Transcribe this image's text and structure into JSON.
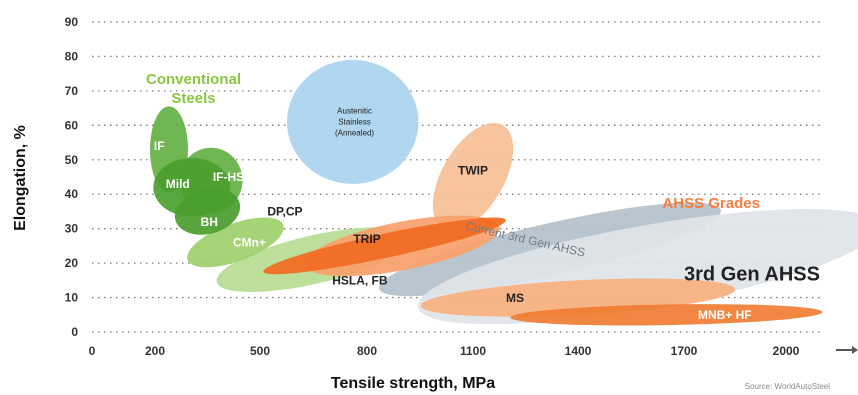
{
  "chart_data": {
    "type": "bubble-region",
    "xlabel": "Tensile strength, MPa",
    "ylabel": "Elongation, %",
    "xlim": [
      0,
      2100
    ],
    "ylim": [
      0,
      90
    ],
    "x_ticks": [
      "0",
      "200",
      "500",
      "800",
      "1100",
      "1400",
      "1700",
      "2000"
    ],
    "x_tick_values": [
      0,
      200,
      500,
      800,
      1100,
      1400,
      1700,
      2000
    ],
    "y_ticks": [
      "0",
      "10",
      "20",
      "30",
      "40",
      "50",
      "60",
      "70",
      "80",
      "90"
    ],
    "y_tick_values": [
      0,
      10,
      20,
      30,
      40,
      50,
      60,
      70,
      80,
      90
    ],
    "grid": true,
    "group_labels": [
      {
        "text": "Conventional Steels",
        "lines": [
          "Conventional",
          "Steels"
        ],
        "color": "#8cc63f",
        "at": [
          310,
          72
        ]
      },
      {
        "text": "AHSS Grades",
        "lines": [
          "AHSS Grades"
        ],
        "color": "#f47f40",
        "at": [
          1780,
          36
        ]
      },
      {
        "text": "3rd Gen AHSS",
        "lines": [
          "3rd Gen AHSS"
        ],
        "color": "#222222",
        "at": [
          1900,
          15
        ]
      }
    ],
    "regions": [
      {
        "name": "HSLA, FB",
        "color": "#b9dc93",
        "cx": 650,
        "cy": 21,
        "w": 560,
        "h": 14,
        "angle": -13,
        "label_at": [
          780,
          15
        ]
      },
      {
        "name": "CMn+",
        "color": "#9fcf6b",
        "cx": 430,
        "cy": 26,
        "w": 290,
        "h": 11,
        "angle": -20,
        "label_at": [
          470,
          26
        ]
      },
      {
        "name": "Austenitic Stainless (Annealed)",
        "lines": [
          "Austenitic",
          "Stainless",
          "(Annealed)"
        ],
        "color": "#a9d4ee",
        "cx": 760,
        "cy": 61,
        "w": 370,
        "h": 36,
        "angle": 0,
        "label_at": [
          765,
          61
        ]
      },
      {
        "name": "TWIP",
        "color": "#f6bf95",
        "cx": 1100,
        "cy": 45,
        "w": 340,
        "h": 18,
        "angle": -60,
        "label_at": [
          1100,
          47
        ]
      },
      {
        "name": "Current 3rd Gen AHSS",
        "color": "#b4c1cb",
        "cx": 1320,
        "cy": 24,
        "w": 1000,
        "h": 15,
        "angle": -13,
        "label_at": [
          1250,
          27
        ]
      },
      {
        "name": "3rd Gen AHSS",
        "color": "#dfe4e8",
        "cx": 1600,
        "cy": 19,
        "w": 1350,
        "h": 24,
        "angle": -10,
        "label_at": [
          1900,
          15
        ]
      },
      {
        "name": "TRIP",
        "color": "#f9a06a",
        "cx": 900,
        "cy": 25,
        "w": 560,
        "h": 14,
        "angle": -11,
        "label_at": [
          800,
          27
        ]
      },
      {
        "name": "DP,CP",
        "color": "#f16a21",
        "cx": 850,
        "cy": 25,
        "w": 700,
        "h": 7,
        "angle": -12,
        "label_at": [
          570,
          35
        ]
      },
      {
        "name": "MS",
        "color": "#f7b07e",
        "cx": 1400,
        "cy": 10,
        "w": 900,
        "h": 10,
        "angle": -3,
        "label_at": [
          1220,
          10
        ]
      },
      {
        "name": "MNB+ HF",
        "color": "#f07d32",
        "cx": 1650,
        "cy": 5,
        "w": 900,
        "h": 6,
        "angle": -1,
        "label_at": [
          1820,
          5
        ]
      },
      {
        "name": "IF",
        "color": "#64b043",
        "cx": 240,
        "cy": 53,
        "w": 110,
        "h": 25,
        "angle": 0,
        "label_at": [
          212,
          54
        ]
      },
      {
        "name": "IF-HS",
        "color": "#64b043",
        "cx": 360,
        "cy": 44,
        "w": 180,
        "h": 19,
        "angle": 0,
        "label_at": [
          410,
          45
        ]
      },
      {
        "name": "Mild",
        "color": "#4ba02f",
        "cx": 305,
        "cy": 42,
        "w": 220,
        "h": 17,
        "angle": 0,
        "label_at": [
          265,
          43
        ]
      },
      {
        "name": "BH",
        "color": "#4a9d2d",
        "cx": 350,
        "cy": 35,
        "w": 190,
        "h": 13,
        "angle": -15,
        "label_at": [
          355,
          32
        ]
      }
    ],
    "source": "Source: WorldAutoSteel"
  }
}
